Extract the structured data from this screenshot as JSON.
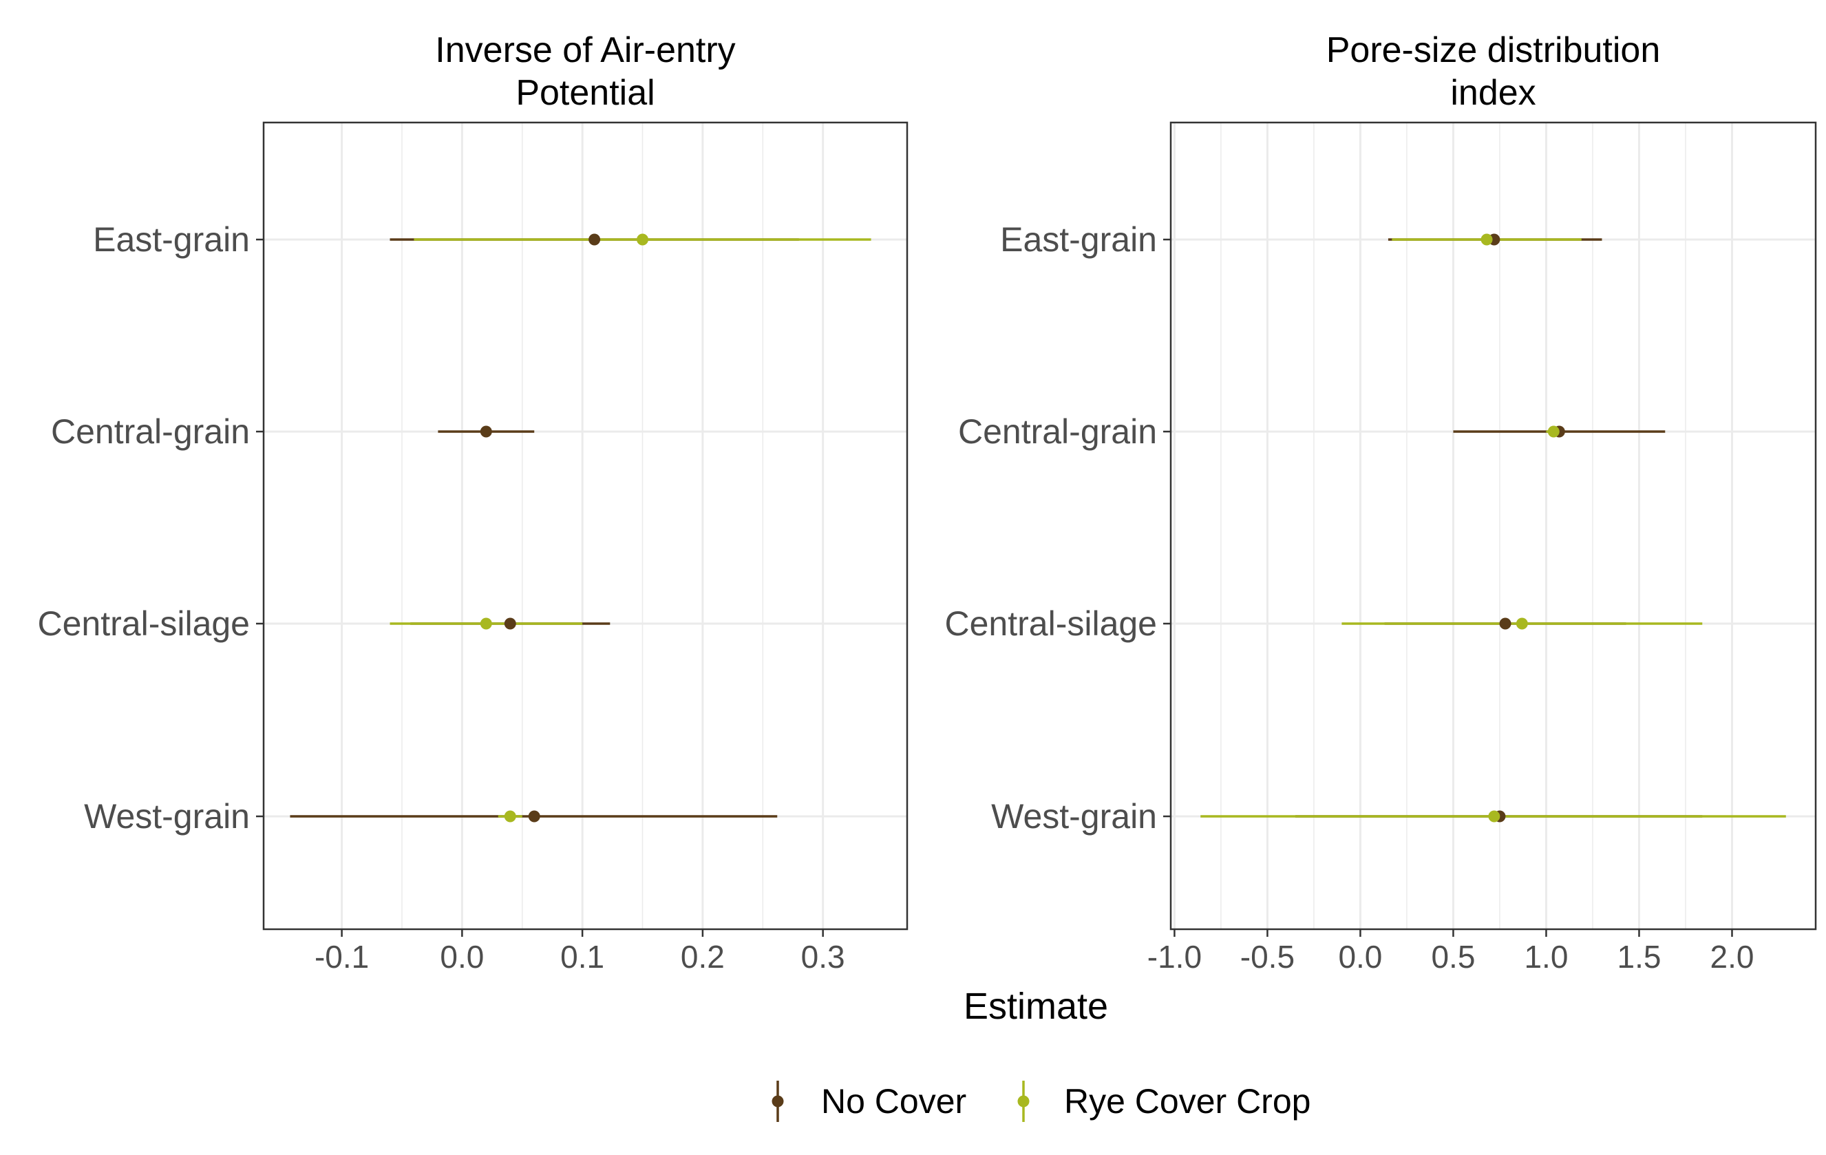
{
  "colors": {
    "no_cover": "#5a3c19",
    "rye_cover_crop": "#a8b820",
    "grid": "#ebebeb",
    "panel_border": "#333333"
  },
  "axis": {
    "xlabel": "Estimate"
  },
  "legend": {
    "position": "bottom",
    "items": [
      {
        "label": "No Cover",
        "color": "#5a3c19"
      },
      {
        "label": "Rye Cover Crop",
        "color": "#a8b820"
      }
    ]
  },
  "chart_data": [
    {
      "type": "scatter",
      "title": "Inverse of Air-entry\nPotential",
      "title_lines": [
        "Inverse of Air-entry",
        "Potential"
      ],
      "xlabel": "Estimate",
      "categories": [
        "East-grain",
        "Central-grain",
        "Central-silage",
        "West-grain"
      ],
      "xlim": [
        -0.165,
        0.37
      ],
      "xticks": [
        -0.1,
        0.0,
        0.1,
        0.2,
        0.3
      ],
      "xtick_labels": [
        "-0.1",
        "0.0",
        "0.1",
        "0.2",
        "0.3"
      ],
      "grid": true,
      "series": [
        {
          "name": "No Cover",
          "points": [
            {
              "category": "East-grain",
              "estimate": 0.11,
              "lower": -0.06,
              "upper": 0.28
            },
            {
              "category": "Central-grain",
              "estimate": 0.02,
              "lower": -0.02,
              "upper": 0.06
            },
            {
              "category": "Central-silage",
              "estimate": 0.04,
              "lower": -0.043,
              "upper": 0.123
            },
            {
              "category": "West-grain",
              "estimate": 0.06,
              "lower": -0.143,
              "upper": 0.262
            }
          ]
        },
        {
          "name": "Rye Cover Crop",
          "points": [
            {
              "category": "East-grain",
              "estimate": 0.15,
              "lower": -0.04,
              "upper": 0.34
            },
            {
              "category": "Central-silage",
              "estimate": 0.02,
              "lower": -0.06,
              "upper": 0.1
            },
            {
              "category": "West-grain",
              "estimate": 0.04,
              "lower": 0.03,
              "upper": 0.05
            }
          ]
        }
      ]
    },
    {
      "type": "scatter",
      "title": "Pore-size distribution\nindex",
      "title_lines": [
        "Pore-size distribution",
        "index"
      ],
      "xlabel": "Estimate",
      "categories": [
        "East-grain",
        "Central-grain",
        "Central-silage",
        "West-grain"
      ],
      "xlim": [
        -1.02,
        2.45
      ],
      "xticks": [
        -1.0,
        -0.5,
        0.0,
        0.5,
        1.0,
        1.5,
        2.0
      ],
      "xtick_labels": [
        "-1.0",
        "-0.5",
        "0.0",
        "0.5",
        "1.0",
        "1.5",
        "2.0"
      ],
      "grid": true,
      "series": [
        {
          "name": "No Cover",
          "points": [
            {
              "category": "East-grain",
              "estimate": 0.72,
              "lower": 0.15,
              "upper": 1.3
            },
            {
              "category": "Central-grain",
              "estimate": 1.07,
              "lower": 0.5,
              "upper": 1.64
            },
            {
              "category": "Central-silage",
              "estimate": 0.78,
              "lower": 0.13,
              "upper": 1.43
            },
            {
              "category": "West-grain",
              "estimate": 0.75,
              "lower": -0.35,
              "upper": 1.84
            }
          ]
        },
        {
          "name": "Rye Cover Crop",
          "points": [
            {
              "category": "East-grain",
              "estimate": 0.68,
              "lower": 0.17,
              "upper": 1.19
            },
            {
              "category": "Central-grain",
              "estimate": 1.04,
              "lower": 1.0,
              "upper": 1.08
            },
            {
              "category": "Central-silage",
              "estimate": 0.87,
              "lower": -0.1,
              "upper": 1.84
            },
            {
              "category": "West-grain",
              "estimate": 0.72,
              "lower": -0.86,
              "upper": 2.29
            }
          ]
        }
      ]
    }
  ]
}
